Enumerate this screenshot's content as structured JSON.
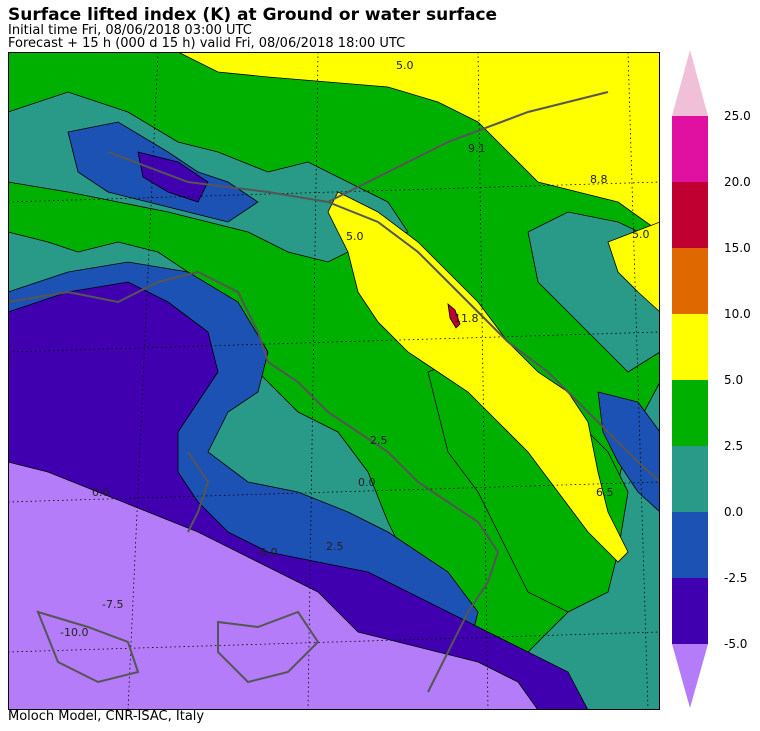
{
  "header": {
    "title": "Surface lifted index (K) at Ground or water surface",
    "initial_time": "Initial time  Fri, 08/06/2018  03:00 UTC",
    "forecast": "Forecast  +  15 h  (000 d 15 h)  valid Fri, 08/06/2018 18:00 UTC"
  },
  "footer": {
    "credit": "Moloch Model, CNR-ISAC, Italy"
  },
  "legend": {
    "labels": [
      "25.0",
      "20.0",
      "15.0",
      "10.0",
      "5.0",
      "2.5",
      "0.0",
      "-2.5",
      "-5.0"
    ],
    "colors": {
      "above_25": "#f0c0d8",
      "20_to_25": "#e010a0",
      "15_to_20": "#c00030",
      "10_to_15": "#e06800",
      "5_to_10": "#ffff00",
      "2_5_to_5": "#00b000",
      "0_to_2_5": "#2a9a88",
      "m2_5_to_0": "#1c52b4",
      "m5_to_m2_5": "#4000b0",
      "below_m5": "#b47cf8"
    }
  },
  "map": {
    "contour_labels": [
      "5.0",
      "9.1",
      "8.8",
      "5.0",
      "5.0",
      "11.8",
      "2.5",
      "0.0",
      "6.5",
      "-5.0",
      "2.5",
      "0.0",
      "-7.5",
      "-10.0"
    ]
  }
}
